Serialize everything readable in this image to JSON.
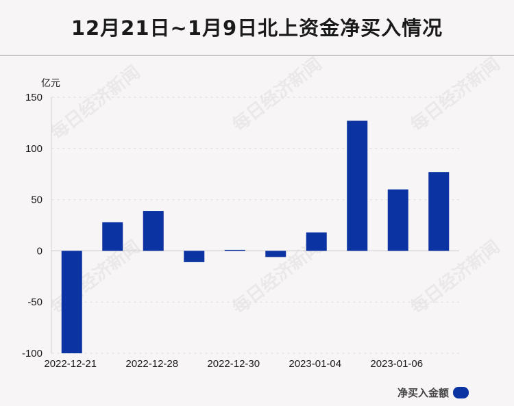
{
  "title": "12月21日~1月9日北上资金净买入情况",
  "unit_label": "亿元",
  "watermark": "每日经济新闻",
  "legend": {
    "label": "净买入金额",
    "position": "bottom-right"
  },
  "colors": {
    "bar": "#0b33a2",
    "grid": "#dedede"
  },
  "chart_data": {
    "type": "bar",
    "title": "12月21日~1月9日北上资金净买入情况",
    "ylabel": "亿元",
    "xlabel": "",
    "ylim": [
      -100,
      150
    ],
    "yticks": [
      150,
      100,
      50,
      0,
      -50,
      -100
    ],
    "categories": [
      "2022-12-21",
      "",
      "2022-12-28",
      "",
      "2022-12-30",
      "",
      "2023-01-04",
      "",
      "2023-01-06",
      ""
    ],
    "series": [
      {
        "name": "净买入金额",
        "values": [
          -100,
          28,
          39,
          -11,
          1,
          -6,
          18,
          127,
          60,
          77
        ]
      }
    ],
    "grid": true,
    "legend": "bottom-right"
  }
}
